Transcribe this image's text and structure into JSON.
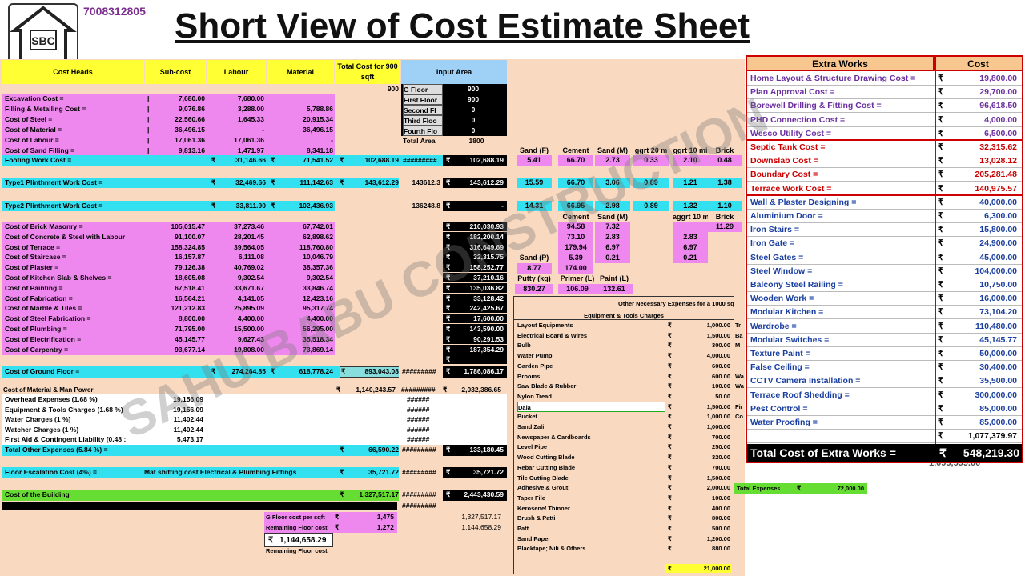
{
  "header": {
    "logo_text": "SBC",
    "phone": "7008312805",
    "title": "Short View of Cost Estimate Sheet"
  },
  "columns": {
    "cost_heads": "Cost Heads",
    "sub_cost": "Sub-cost",
    "labour": "Labour",
    "material": "Material",
    "total": "Total Cost for 900 sqft",
    "input_area": "Input Area",
    "total_value_note": "900"
  },
  "input_area": {
    "rows": [
      {
        "label": "G Floor",
        "value": "900"
      },
      {
        "label": "First Floor",
        "value": "900"
      },
      {
        "label": "Second Fl",
        "value": "0"
      },
      {
        "label": "Third Floo",
        "value": "0"
      },
      {
        "label": "Fourth Flo",
        "value": "0"
      }
    ],
    "total_label": "Total Area",
    "total_value": "1800"
  },
  "rows_a": [
    {
      "name": "Excavation Cost =",
      "sub": "7,680.00",
      "labour": "7,680.00",
      "material": ""
    },
    {
      "name": "Filling & Metalling Cost =",
      "sub": "9,076.86",
      "labour": "3,288.00",
      "material": "5,788.86"
    },
    {
      "name": "Cost of Steel =",
      "sub": "22,560.66",
      "labour": "1,645.33",
      "material": "20,915.34"
    },
    {
      "name": "Cost of Material =",
      "sub": "36,496.15",
      "labour": "-",
      "material": "36,496.15"
    },
    {
      "name": "Cost of Labour =",
      "sub": "17,061.36",
      "labour": "17,061.36",
      "material": "-"
    },
    {
      "name": "Cost of Sand Filling =",
      "sub": "9,813.16",
      "labour": "1,471.97",
      "material": "8,341.18"
    }
  ],
  "footing": {
    "name": "Footing Work Cost =",
    "labour": "31,146.66",
    "material": "71,541.52",
    "total": "102,688.19",
    "stars": "#########",
    "black": "102,688.19"
  },
  "type1": {
    "name": "Type1 Plinthment Work Cost =",
    "labour": "32,469.66",
    "material": "111,142.63",
    "total": "143,612.29",
    "mid": "143612.3",
    "black": "143,612.29"
  },
  "type2": {
    "name": "Type2 Plinthment Work Cost =",
    "labour": "33,811.90",
    "material": "102,436.93",
    "mid": "136248.8",
    "black": "-"
  },
  "rows_b": [
    {
      "name": "Cost of Brick Masonry =",
      "sub": "105,015.47",
      "labour": "37,273.46",
      "material": "67,742.01",
      "black": "210,030.93"
    },
    {
      "name": "Cost of Concrete & Steel with Labour",
      "sub": "91,100.07",
      "labour": "28,201.45",
      "material": "62,898.62",
      "black": "182,200.14"
    },
    {
      "name": "Cost of Terrace =",
      "sub": "158,324.85",
      "labour": "39,564.05",
      "material": "118,760.80",
      "black": "316,649.69"
    },
    {
      "name": "Cost of Staircase =",
      "sub": "16,157.87",
      "labour": "6,111.08",
      "material": "10,046.79",
      "black": "32,315.75"
    },
    {
      "name": "Cost of Plaster =",
      "sub": "79,126.38",
      "labour": "40,769.02",
      "material": "38,357.36",
      "black": "158,252.77"
    },
    {
      "name": "Cost of Kitchen Slab & Shelves =",
      "sub": "18,605.08",
      "labour": "9,302.54",
      "material": "9,302.54",
      "black": "37,210.16"
    },
    {
      "name": "Cost of Painting =",
      "sub": "67,518.41",
      "labour": "33,671.67",
      "material": "33,846.74",
      "black": "135,036.82"
    },
    {
      "name": "Cost of Fabrication =",
      "sub": "16,564.21",
      "labour": "4,141.05",
      "material": "12,423.16",
      "black": "33,128.42"
    },
    {
      "name": "Cost of Marble & Tiles =",
      "sub": "121,212.83",
      "labour": "25,895.09",
      "material": "95,317.74",
      "black": "242,425.67"
    },
    {
      "name": "Cost of Steel Fabrication =",
      "sub": "8,800.00",
      "labour": "4,400.00",
      "material": "4,400.00",
      "black": "17,600.00"
    },
    {
      "name": "Cost of Plumbing =",
      "sub": "71,795.00",
      "labour": "15,500.00",
      "material": "56,295.00",
      "black": "143,590.00"
    },
    {
      "name": "Cost of Electrification =",
      "sub": "45,145.77",
      "labour": "9,627.43",
      "material": "35,518.34",
      "black": "90,291.53"
    },
    {
      "name": "Cost of Carpentry =",
      "sub": "93,677.14",
      "labour": "19,808.00",
      "material": "73,869.14",
      "black": "187,354.29"
    }
  ],
  "ground_floor": {
    "name": "Cost of Ground Floor =",
    "labour": "274,264.85",
    "material": "618,778.24",
    "total": "893,043.08",
    "stars": "#########",
    "black": "1,786,086.17"
  },
  "man_power": {
    "name": "Cost of Material & Man Power",
    "total": "1,140,243.57",
    "stars": "#########",
    "black": "2,032,386.65"
  },
  "other_rows": [
    {
      "name": "Overhead Expenses (1.68 %)",
      "value": "19,156.09",
      "hash": "######"
    },
    {
      "name": "Equipment & Tools Charges (1.68 %)",
      "value": "19,156.09",
      "hash": "######"
    },
    {
      "name": "Water Charges (1 %)",
      "value": "11,402.44",
      "hash": "######"
    },
    {
      "name": "Watcher Charges (1 %)",
      "value": "11,402.44",
      "hash": "######"
    },
    {
      "name": "First Aid & Contingent Liability (0.48 :",
      "value": "5,473.17",
      "hash": "######"
    }
  ],
  "total_other": {
    "name": "Total Other Expenses (5.84 %) =",
    "total": "66,590.22",
    "stars": "#########",
    "black": "133,180.45"
  },
  "escalation": {
    "name": "Floor Escalation Cost (4%) =",
    "note": "Mat shifting cost Electrical & Plumbing Fittings",
    "total": "35,721.72",
    "stars": "#########",
    "black": "35,721.72"
  },
  "building": {
    "name": "Cost of the Building",
    "total": "1,327,517.17",
    "stars": "#########",
    "black": "2,443,430.59"
  },
  "building_stars2": "#########",
  "per_sqft": {
    "g_label": "G Floor cost per sqft",
    "g_value": "1,475",
    "r_label": "Remaining Floor cost",
    "r_value": "1,272",
    "box_value": "1,144,658.29",
    "box_label": "Remaining Floor cost",
    "right1": "1,327,517.17",
    "right2": "1,144,658.29"
  },
  "materials": {
    "header1": [
      "Sand (F)",
      "Cement",
      "Sand (M)",
      "ggrt 20 m",
      "ggrt 10 mi",
      "Brick"
    ],
    "footing_vals": [
      "5.41",
      "66.70",
      "2.73",
      "0.33",
      "2.10",
      "0.48"
    ],
    "type1_vals": [
      "15.59",
      "66.70",
      "3.06",
      "0.89",
      "1.21",
      "1.38"
    ],
    "type2_vals": [
      "14.31",
      "66.95",
      "2.98",
      "0.89",
      "1.32",
      "1.10"
    ],
    "header2": [
      "Cement",
      "Sand (M)",
      "aggrt 10 mi",
      "Brick"
    ],
    "brick_vals": [
      "94.58",
      "7.32",
      "",
      "11.29"
    ],
    "concrete_vals": [
      "73.10",
      "2.83",
      "2.83"
    ],
    "terrace_vals": [
      "179.94",
      "6.97",
      "6.97"
    ],
    "sandp_label": "Sand (P)",
    "staircase_vals": [
      "5.39",
      "0.21",
      "0.21"
    ],
    "plaster_vals": [
      "8.77",
      "174.00"
    ],
    "paint_header": [
      "Putty (kg)",
      "Primer (L)",
      "Paint (L)"
    ],
    "paint_vals": [
      "830.27",
      "106.09",
      "132.61"
    ]
  },
  "equipment": {
    "title": "Other Necessary Expenses for a 1000 sq",
    "subtitle": "Equipment & Tools Charges",
    "rupee": "₹",
    "items": [
      {
        "name": "Layout Equipments",
        "value": "1,000.00"
      },
      {
        "name": "Electrical Board & Wires",
        "value": "1,500.00"
      },
      {
        "name": "Bulb",
        "value": "300.00"
      },
      {
        "name": "Water Pump",
        "value": "4,000.00"
      },
      {
        "name": "Garden Pipe",
        "value": "600.00"
      },
      {
        "name": "Brooms",
        "value": "600.00"
      },
      {
        "name": "Saw Blade & Rubber",
        "value": "100.00"
      },
      {
        "name": "Nylon Tread",
        "value": "50.00"
      },
      {
        "name": "Dala",
        "value": "1,500.00"
      },
      {
        "name": "Bucket",
        "value": "1,000.00"
      },
      {
        "name": "Sand Zali",
        "value": "1,000.00"
      },
      {
        "name": "Newspaper & Cardboards",
        "value": "700.00"
      },
      {
        "name": "Level Pipe",
        "value": "250.00"
      },
      {
        "name": "Wood Cutting Blade",
        "value": "320.00"
      },
      {
        "name": "Rebar Cutting Blade",
        "value": "700.00"
      },
      {
        "name": "Tile Cutting Blade",
        "value": "1,500.00"
      },
      {
        "name": "Adhesive & Grout",
        "value": "2,000.00"
      },
      {
        "name": "Taper File",
        "value": "100.00"
      },
      {
        "name": "Kerosene/ Thinner",
        "value": "400.00"
      },
      {
        "name": "Brush & Patti",
        "value": "800.00"
      },
      {
        "name": "Patt",
        "value": "500.00"
      },
      {
        "name": "Sand Paper",
        "value": "1,200.00"
      },
      {
        "name": "Blacktape; Nili & Others",
        "value": "880.00"
      }
    ],
    "side_labels": [
      "Tr",
      "Ba",
      "M",
      "",
      "",
      "Wa",
      "Wa",
      "",
      "Fir",
      "Co"
    ],
    "total": "21,000.00",
    "total_expenses_label": "Total Expenses",
    "total_expenses_value": "72,000.00",
    "hidden_total": "1,095,599.00"
  },
  "extra_works": {
    "head_name": "Extra Works",
    "head_cost": "Cost",
    "rupee": "₹",
    "items": [
      {
        "name": "Home Layout & Structure Drawing Cost =",
        "value": "19,800.00",
        "group": "a"
      },
      {
        "name": "Plan Approval Cost =",
        "value": "29,700.00",
        "group": "a"
      },
      {
        "name": "Borewell Drilling & Fitting Cost =",
        "value": "96,618.50",
        "group": "a"
      },
      {
        "name": "PHD Connection Cost =",
        "value": "4,000.00",
        "group": "a"
      },
      {
        "name": "Wesco Utility Cost =",
        "value": "6,500.00",
        "group": "a"
      },
      {
        "name": "Septic Tank Cost =",
        "value": "32,315.62",
        "group": "b"
      },
      {
        "name": "Downslab Cost =",
        "value": "13,028.12",
        "group": "b"
      },
      {
        "name": "Boundary Cost =",
        "value": "205,281.48",
        "group": "b"
      },
      {
        "name": "Terrace Work Cost =",
        "value": "140,975.57",
        "group": "b"
      },
      {
        "name": "Wall & Plaster Designing =",
        "value": "40,000.00",
        "group": "c"
      },
      {
        "name": "Aluminium Door =",
        "value": "6,300.00",
        "group": "c"
      },
      {
        "name": "Iron Stairs =",
        "value": "15,800.00",
        "group": "c"
      },
      {
        "name": "Iron Gate =",
        "value": "24,900.00",
        "group": "c"
      },
      {
        "name": "Steel Gates =",
        "value": "45,000.00",
        "group": "c"
      },
      {
        "name": "Steel Window =",
        "value": "104,000.00",
        "group": "c"
      },
      {
        "name": "Balcony Steel Railing =",
        "value": "10,750.00",
        "group": "c"
      },
      {
        "name": "Wooden Work =",
        "value": "16,000.00",
        "group": "c"
      },
      {
        "name": "Modular Kitchen =",
        "value": "73,104.20",
        "group": "c"
      },
      {
        "name": "Wardrobe =",
        "value": "110,480.00",
        "group": "c"
      },
      {
        "name": "Modular Switches =",
        "value": "45,145.77",
        "group": "c"
      },
      {
        "name": "Texture Paint =",
        "value": "50,000.00",
        "group": "c"
      },
      {
        "name": "False Ceiling =",
        "value": "30,400.00",
        "group": "c"
      },
      {
        "name": "CCTV Camera Installation =",
        "value": "35,500.00",
        "group": "c"
      },
      {
        "name": "Terrace Roof Shedding =",
        "value": "300,000.00",
        "group": "c"
      },
      {
        "name": "Pest Control =",
        "value": "85,000.00",
        "group": "c"
      },
      {
        "name": "Water Proofing =",
        "value": "85,000.00",
        "group": "c"
      }
    ],
    "subtotal": "1,077,379.97",
    "total_label": "Total Cost of Extra Works =",
    "total_value": "548,219.30"
  },
  "watermark": "SAHU BABU CONSTRUCTION",
  "rupee": "₹",
  "colors": {
    "pink": "#ee88ee",
    "cyan": "#33e0f0",
    "yellow": "#ffff33",
    "green": "#66dd33",
    "peach": "#f9d9c0",
    "accent_red": "#cc0000",
    "label_purple": "#6b2fa0"
  }
}
